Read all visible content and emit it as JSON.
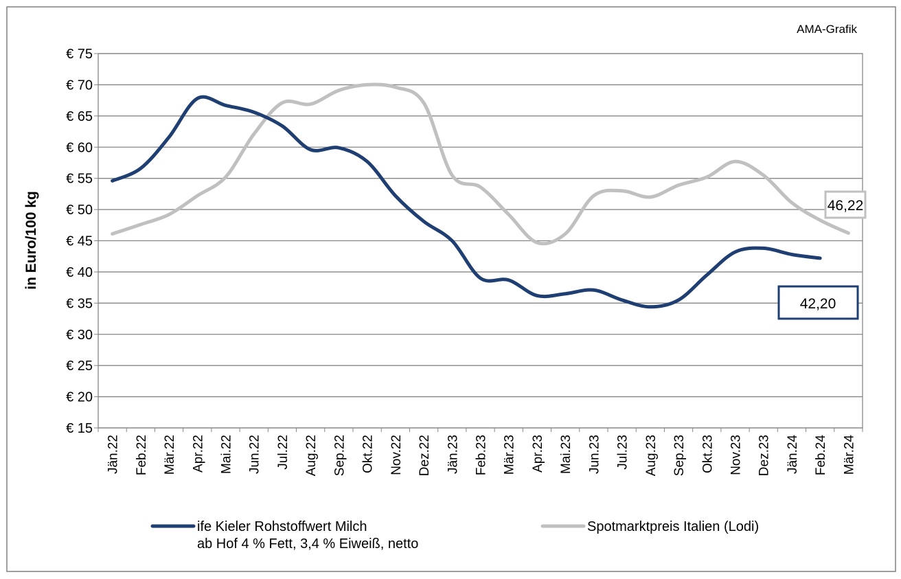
{
  "chart_data": {
    "type": "line",
    "source": "AMA-Grafik",
    "y_label": "in Euro/100 kg",
    "categories": [
      "Jän.22",
      "Feb.22",
      "Mär.22",
      "Apr.22",
      "Mai.22",
      "Jun.22",
      "Jul.22",
      "Aug.22",
      "Sep.22",
      "Okt.22",
      "Nov.22",
      "Dez.22",
      "Jän.23",
      "Feb.23",
      "Mär.23",
      "Apr.23",
      "Mai.23",
      "Jun.23",
      "Jul.23",
      "Aug.23",
      "Sep.23",
      "Okt.23",
      "Nov.23",
      "Dez.23",
      "Jän.24",
      "Feb.24",
      "Mär.24"
    ],
    "series": [
      {
        "name": "ife Kieler Rohstoffwert Milch\nab Hof 4 % Fett, 3,4 % Eiweiß, netto",
        "color": "#1f3f73",
        "values": [
          54.6,
          56.6,
          61.6,
          67.8,
          66.7,
          65.6,
          63.4,
          59.6,
          59.9,
          57.7,
          52.2,
          48.1,
          45.0,
          39.0,
          38.7,
          36.2,
          36.5,
          37.1,
          35.5,
          34.4,
          35.5,
          39.5,
          43.2,
          43.8,
          42.8,
          42.2,
          null
        ],
        "value_labels": [
          null,
          null,
          null,
          null,
          null,
          null,
          null,
          null,
          null,
          null,
          null,
          null,
          null,
          null,
          null,
          null,
          null,
          null,
          null,
          null,
          null,
          null,
          null,
          null,
          null,
          "42,20",
          null
        ]
      },
      {
        "name": "Spotmarktpreis Italien (Lodi)",
        "color": "#c0c0c0",
        "values": [
          46.1,
          47.6,
          49.2,
          52.2,
          55.2,
          62.1,
          67.1,
          66.9,
          69.1,
          70.0,
          69.6,
          67.1,
          55.5,
          53.6,
          49.2,
          44.7,
          46.1,
          52.2,
          53.0,
          52.0,
          53.9,
          55.2,
          57.7,
          55.5,
          51.1,
          48.3,
          46.22
        ],
        "value_labels": [
          null,
          null,
          null,
          null,
          null,
          null,
          null,
          null,
          null,
          null,
          null,
          null,
          null,
          null,
          null,
          null,
          null,
          null,
          null,
          null,
          null,
          null,
          null,
          null,
          null,
          null,
          "46,22"
        ]
      }
    ],
    "ylim": [
      15,
      75
    ],
    "yticks": [
      {
        "value": 15,
        "label": "€ 15"
      },
      {
        "value": 20,
        "label": "€ 20"
      },
      {
        "value": 25,
        "label": "€ 25"
      },
      {
        "value": 30,
        "label": "€ 30"
      },
      {
        "value": 35,
        "label": "€ 35"
      },
      {
        "value": 40,
        "label": "€ 40"
      },
      {
        "value": 45,
        "label": "€ 45"
      },
      {
        "value": 50,
        "label": "€ 50"
      },
      {
        "value": 55,
        "label": "€ 55"
      },
      {
        "value": 60,
        "label": "€ 60"
      },
      {
        "value": 65,
        "label": "€ 65"
      },
      {
        "value": 70,
        "label": "€ 70"
      },
      {
        "value": 75,
        "label": "€ 75"
      }
    ],
    "grid": true
  }
}
